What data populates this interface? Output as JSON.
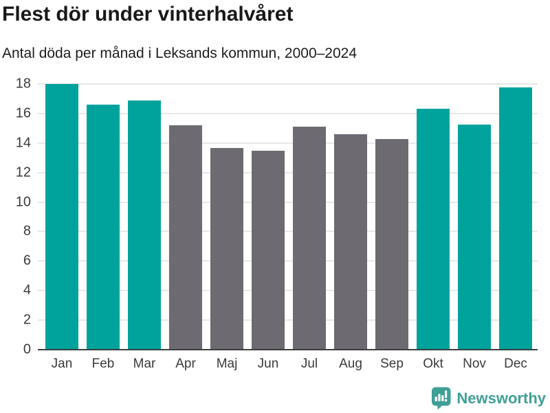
{
  "header": {
    "title": "Flest dör under vinterhalvåret",
    "subtitle": "Antal döda per månad i Leksands kommun, 2000–2024"
  },
  "chart_data": {
    "type": "bar",
    "categories": [
      "Jan",
      "Feb",
      "Mar",
      "Apr",
      "Maj",
      "Jun",
      "Jul",
      "Aug",
      "Sep",
      "Okt",
      "Nov",
      "Dec"
    ],
    "values": [
      18.0,
      16.6,
      16.9,
      15.2,
      13.65,
      13.5,
      15.1,
      14.6,
      14.25,
      16.3,
      15.25,
      17.75
    ],
    "highlighted": [
      true,
      true,
      true,
      false,
      false,
      false,
      false,
      false,
      false,
      true,
      true,
      true
    ],
    "title": "Flest dör under vinterhalvåret",
    "subtitle": "Antal döda per månad i Leksands kommun, 2000–2024",
    "xlabel": "",
    "ylabel": "",
    "ylim": [
      0,
      18
    ],
    "yticks": [
      0,
      2,
      4,
      6,
      8,
      10,
      12,
      14,
      16,
      18
    ],
    "grid": true,
    "legend": false,
    "colors": {
      "highlight": "#00a39c",
      "muted": "#6d6a72",
      "gridline": "#e7e7e7",
      "axis": "#3e3e3e",
      "title_text": "#191919",
      "tick_text": "#3a3a3a"
    }
  },
  "footer": {
    "brand": "Newsworthy",
    "brand_color": "#3f9f96",
    "brand_icon": "newsworthy-bar-chart-bubble"
  }
}
